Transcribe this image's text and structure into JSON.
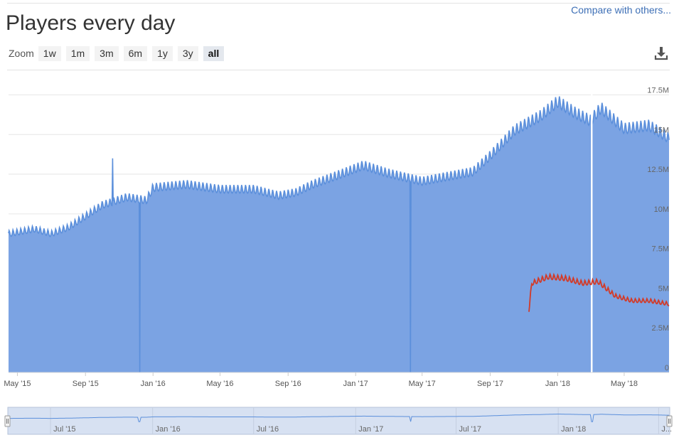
{
  "header": {
    "title": "Players every day",
    "compare_link": "Compare with others..."
  },
  "toolbar": {
    "zoom_label": "Zoom",
    "zoom_options": [
      "1w",
      "1m",
      "3m",
      "6m",
      "1y",
      "3y",
      "all"
    ],
    "zoom_selected": "all",
    "download_icon": "download-icon"
  },
  "colors": {
    "series_main": "#5b8fdb",
    "series_main_fill": "#7ba3e3",
    "series_secondary": "#d23a28",
    "navigator_fill": "#d7e1f2"
  },
  "chart_data": {
    "type": "area",
    "title": "Players every day",
    "xlabel": "",
    "ylabel": "",
    "x_range": [
      "2015-04-15",
      "2018-07-21"
    ],
    "ylim": [
      0,
      19000000
    ],
    "y_ticks": [
      {
        "value": 0,
        "label": "0"
      },
      {
        "value": 2500000,
        "label": "2.5M"
      },
      {
        "value": 5000000,
        "label": "5M"
      },
      {
        "value": 7500000,
        "label": "7.5M"
      },
      {
        "value": 10000000,
        "label": "10M"
      },
      {
        "value": 12500000,
        "label": "12.5M"
      },
      {
        "value": 15000000,
        "label": "15M"
      },
      {
        "value": 17500000,
        "label": "17.5M"
      }
    ],
    "x_ticks": [
      {
        "date": "2015-05-01",
        "label": "May '15"
      },
      {
        "date": "2015-09-01",
        "label": "Sep '15"
      },
      {
        "date": "2016-01-01",
        "label": "Jan '16"
      },
      {
        "date": "2016-05-01",
        "label": "May '16"
      },
      {
        "date": "2016-09-01",
        "label": "Sep '16"
      },
      {
        "date": "2017-01-01",
        "label": "Jan '17"
      },
      {
        "date": "2017-05-01",
        "label": "May '17"
      },
      {
        "date": "2017-09-01",
        "label": "Sep '17"
      },
      {
        "date": "2018-01-01",
        "label": "Jan '18"
      },
      {
        "date": "2018-05-01",
        "label": "May '18"
      }
    ],
    "grid": true,
    "weekly_cycle_amplitude": 0.14,
    "series": [
      {
        "color": "#5b8fdb",
        "fill": "#7ba3e3",
        "points": [
          [
            "2015-04-15",
            8700000
          ],
          [
            "2015-06-01",
            9000000
          ],
          [
            "2015-07-01",
            8700000
          ],
          [
            "2015-08-01",
            9100000
          ],
          [
            "2015-09-01",
            9800000
          ],
          [
            "2015-10-01",
            10500000
          ],
          [
            "2015-11-15",
            11000000
          ],
          [
            "2015-12-20",
            10800000
          ],
          [
            "2016-01-01",
            11600000
          ],
          [
            "2016-03-01",
            11800000
          ],
          [
            "2016-05-01",
            11500000
          ],
          [
            "2016-07-01",
            11500000
          ],
          [
            "2016-08-15",
            11100000
          ],
          [
            "2016-09-15",
            11300000
          ],
          [
            "2016-10-15",
            11800000
          ],
          [
            "2016-12-01",
            12400000
          ],
          [
            "2017-01-15",
            13000000
          ],
          [
            "2017-03-01",
            12500000
          ],
          [
            "2017-05-01",
            12000000
          ],
          [
            "2017-06-15",
            12300000
          ],
          [
            "2017-08-01",
            12600000
          ],
          [
            "2017-09-01",
            13600000
          ],
          [
            "2017-10-15",
            15200000
          ],
          [
            "2017-12-01",
            16100000
          ],
          [
            "2018-01-01",
            17000000
          ],
          [
            "2018-02-01",
            16300000
          ],
          [
            "2018-03-01",
            15800000
          ],
          [
            "2018-03-20",
            16600000
          ],
          [
            "2018-05-01",
            15300000
          ],
          [
            "2018-06-15",
            15500000
          ],
          [
            "2018-07-21",
            14700000
          ]
        ],
        "dips": [
          {
            "date": "2015-12-08",
            "value": 0
          },
          {
            "date": "2017-04-10",
            "value": 0
          },
          {
            "date": "2018-03-03",
            "value": 0
          }
        ],
        "spikes": [
          {
            "date": "2015-10-20",
            "value": 13500000
          }
        ]
      },
      {
        "color": "#d23a28",
        "points": [
          [
            "2017-11-10",
            3900000
          ],
          [
            "2017-11-15",
            5600000
          ],
          [
            "2017-12-15",
            6000000
          ],
          [
            "2018-01-15",
            5900000
          ],
          [
            "2018-02-15",
            5600000
          ],
          [
            "2018-03-15",
            5700000
          ],
          [
            "2018-04-15",
            4800000
          ],
          [
            "2018-05-15",
            4500000
          ],
          [
            "2018-06-15",
            4500000
          ],
          [
            "2018-07-21",
            4300000
          ]
        ]
      }
    ],
    "navigator": {
      "x_ticks": [
        {
          "date": "2015-07-01",
          "label": "Jul '15"
        },
        {
          "date": "2016-01-01",
          "label": "Jan '16"
        },
        {
          "date": "2016-07-01",
          "label": "Jul '16"
        },
        {
          "date": "2017-01-01",
          "label": "Jan '17"
        },
        {
          "date": "2017-07-01",
          "label": "Jul '17"
        },
        {
          "date": "2018-01-01",
          "label": "Jan '18"
        },
        {
          "date": "2018-07-01",
          "label": "J..."
        }
      ]
    }
  }
}
